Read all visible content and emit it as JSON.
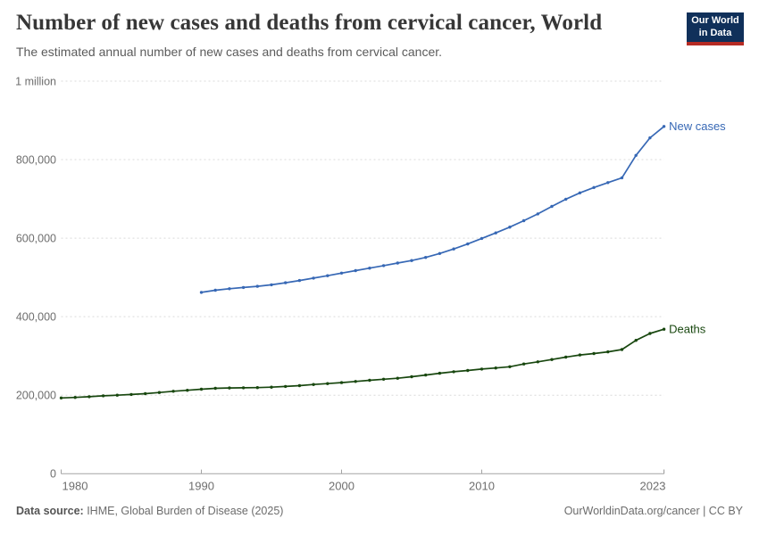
{
  "header": {
    "title": "Number of new cases and deaths from cervical cancer, World",
    "subtitle": "The estimated annual number of new cases and deaths from cervical cancer.",
    "logo": {
      "line1": "Our World",
      "line2": "in Data",
      "bg_color": "#10305a",
      "bar_color": "#b62b24"
    }
  },
  "footer": {
    "source_label": "Data source:",
    "source_value": " IHME, Global Burden of Disease (2025)",
    "right_text": "OurWorldinData.org/cancer | CC BY"
  },
  "colors": {
    "new_cases_line": "#3768b5",
    "deaths_line": "#18470f",
    "gridline": "#d9d9d9",
    "axis": "#a3a3a3",
    "tick_text": "#6e6e6e"
  },
  "chart_data": {
    "type": "line",
    "title": "Number of new cases and deaths from cervical cancer, World",
    "subtitle": "The estimated annual number of new cases and deaths from cervical cancer.",
    "grid": "horizontal dashed",
    "legend_position": "line-end-labels",
    "x_range": [
      1980,
      2023
    ],
    "y_range": [
      0,
      1000000
    ],
    "x_ticks": [
      {
        "value": 1980,
        "label": "1980"
      },
      {
        "value": 1990,
        "label": "1990"
      },
      {
        "value": 2000,
        "label": "2000"
      },
      {
        "value": 2010,
        "label": "2010"
      },
      {
        "value": 2023,
        "label": "2023"
      }
    ],
    "y_ticks": [
      {
        "value": 0,
        "label": "0"
      },
      {
        "value": 200000,
        "label": "200,000"
      },
      {
        "value": 400000,
        "label": "400,000"
      },
      {
        "value": 600000,
        "label": "600,000"
      },
      {
        "value": 800000,
        "label": "800,000"
      },
      {
        "value": 1000000,
        "label": "1 million"
      }
    ],
    "series": [
      {
        "name": "New cases",
        "color": "#3768b5",
        "years": [
          1990,
          1991,
          1992,
          1993,
          1994,
          1995,
          1996,
          1997,
          1998,
          1999,
          2000,
          2001,
          2002,
          2003,
          2004,
          2005,
          2006,
          2007,
          2008,
          2009,
          2010,
          2011,
          2012,
          2013,
          2014,
          2015,
          2016,
          2017,
          2018,
          2019,
          2020,
          2021,
          2022,
          2023
        ],
        "values": [
          462000,
          467500,
          471300,
          474500,
          477500,
          481300,
          486500,
          492200,
          498200,
          504500,
          511000,
          517300,
          523800,
          530100,
          536600,
          543100,
          551000,
          561000,
          572500,
          585300,
          599400,
          613500,
          628300,
          644500,
          661900,
          680800,
          699300,
          715400,
          729100,
          741500,
          753800,
          810800,
          855500,
          884600
        ]
      },
      {
        "name": "Deaths",
        "color": "#18470f",
        "years": [
          1980,
          1981,
          1982,
          1983,
          1984,
          1985,
          1986,
          1987,
          1988,
          1989,
          1990,
          1991,
          1992,
          1993,
          1994,
          1995,
          1996,
          1997,
          1998,
          1999,
          2000,
          2001,
          2002,
          2003,
          2004,
          2005,
          2006,
          2007,
          2008,
          2009,
          2010,
          2011,
          2012,
          2013,
          2014,
          2015,
          2016,
          2017,
          2018,
          2019,
          2020,
          2021,
          2022,
          2023
        ],
        "values": [
          193000,
          194500,
          196300,
          198600,
          200200,
          201800,
          204000,
          207000,
          210000,
          212500,
          215200,
          217500,
          218500,
          219000,
          219400,
          220600,
          222300,
          224300,
          227400,
          229700,
          232200,
          235000,
          238000,
          240700,
          243300,
          247000,
          251500,
          256000,
          259800,
          263000,
          266700,
          269300,
          272600,
          279500,
          285000,
          291000,
          297000,
          302500,
          306200,
          310500,
          316300,
          339800,
          357300,
          368200
        ]
      }
    ]
  }
}
